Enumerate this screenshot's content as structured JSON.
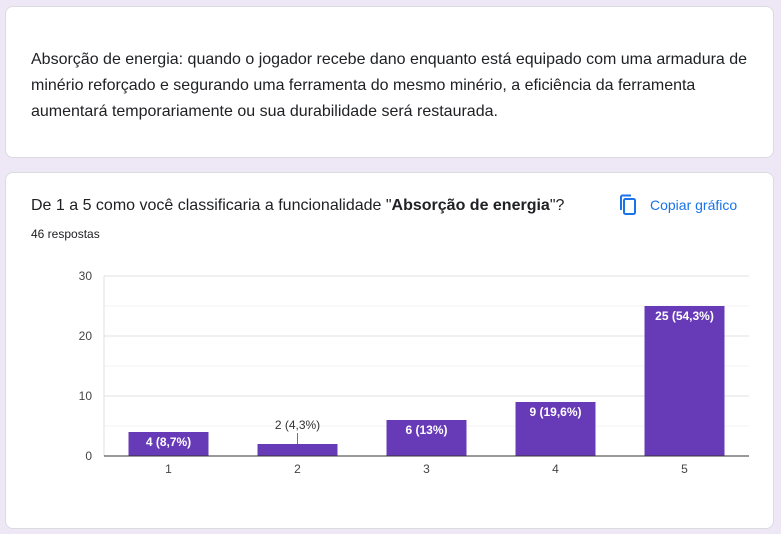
{
  "description": {
    "text": "Absorção de energia: quando o jogador recebe dano enquanto está equipado com uma armadura de minério reforçado e segurando uma ferramenta do mesmo minério, a eficiência da ferramenta aumentará temporariamente ou sua durabilidade será restaurada."
  },
  "question": {
    "title_prefix": "De 1 a 5 como você classificaria a funcionalidade \"",
    "title_bold": "Absorção de energia",
    "title_suffix": "\"?",
    "responses": "46 respostas"
  },
  "copy_chart": {
    "label": "Copiar gráfico",
    "icon": "copy-icon"
  },
  "colors": {
    "bar": "#673ab7",
    "accent": "#1a73e8",
    "background": "#ede7f6"
  },
  "chart_data": {
    "type": "bar",
    "categories": [
      "1",
      "2",
      "3",
      "4",
      "5"
    ],
    "values": [
      4,
      2,
      6,
      9,
      25
    ],
    "data_labels": [
      "4 (8,7%)",
      "2 (4,3%)",
      "6 (13%)",
      "9 (19,6%)",
      "25 (54,3%)"
    ],
    "ylim": [
      0,
      30
    ],
    "yticks": [
      0,
      10,
      20,
      30
    ],
    "grid": true,
    "legend": "none"
  }
}
